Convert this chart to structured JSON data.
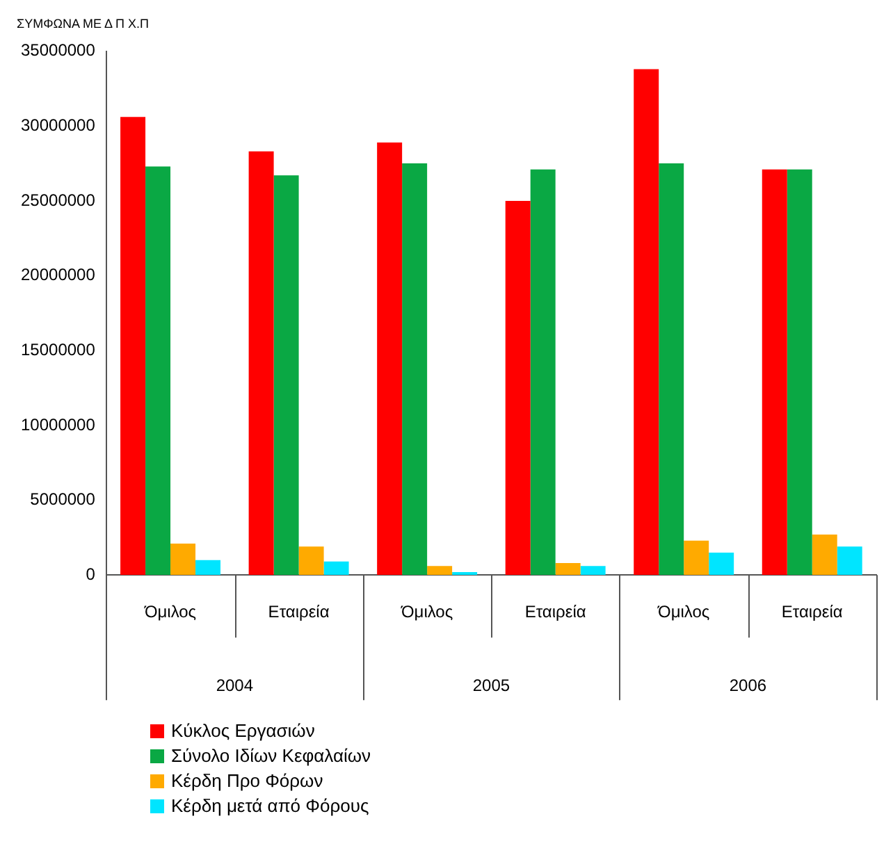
{
  "chart_data": {
    "type": "bar",
    "title": "ΣΥΜΦΩΝΑ ΜΕ Δ Π Χ.Π",
    "categories": [
      "Όμιλος",
      "Εταιρεία",
      "Όμιλος",
      "Εταιρεία",
      "Όμιλος",
      "Εταιρεία"
    ],
    "annotations": [
      "2004",
      "2005",
      "2006"
    ],
    "series": [
      {
        "name": "Κύκλος Εργασιών",
        "color": "#ff0000",
        "values": [
          30600000,
          28300000,
          28900000,
          25000000,
          33800000,
          27100000
        ]
      },
      {
        "name": "Σύνολο Ιδίων Κεφαλαίων",
        "color": "#0aa844",
        "values": [
          27300000,
          26700000,
          27500000,
          27100000,
          27500000,
          27100000
        ]
      },
      {
        "name": "Κέρδη Προ Φόρων",
        "color": "#ffaa00",
        "values": [
          2100000,
          1900000,
          600000,
          800000,
          2300000,
          2700000
        ]
      },
      {
        "name": "Κέρδη μετά από Φόρους",
        "color": "#00e5ff",
        "values": [
          1000000,
          900000,
          200000,
          600000,
          1500000,
          1900000
        ]
      }
    ],
    "ylim": [
      0,
      35000000
    ],
    "yticks": [
      0,
      5000000,
      10000000,
      15000000,
      20000000,
      25000000,
      30000000,
      35000000
    ],
    "grid": false,
    "legend": "bottom left"
  }
}
